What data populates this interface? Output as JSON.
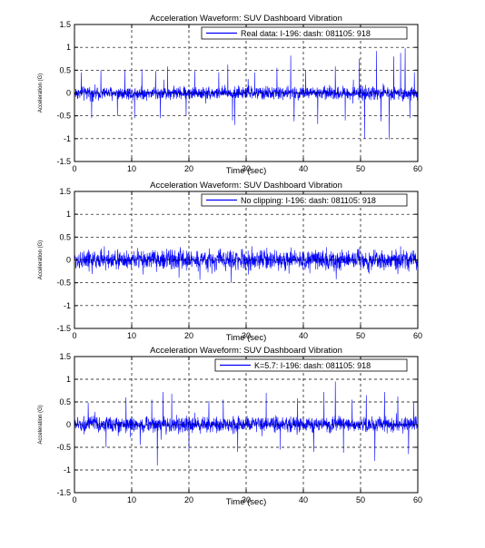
{
  "chart_data": [
    {
      "type": "line",
      "title": "Acceleration Waveform: SUV Dashboard Vibration",
      "xlabel": "Time (sec)",
      "ylabel": "Acceleration (G)",
      "xlim": [
        0,
        60
      ],
      "ylim": [
        -1.5,
        1.5
      ],
      "xticks": [
        0,
        10,
        20,
        30,
        40,
        50,
        60
      ],
      "yticks": [
        -1.5,
        -1,
        -0.5,
        0,
        0.5,
        1,
        1.5
      ],
      "grid": true,
      "legend_position": "top-right",
      "line_color": "#0000ff",
      "series": [
        {
          "name": "Real data: I-196: dash: 081105: 918",
          "base_amplitude": 0.1,
          "peaks": [
            {
              "t": 1.2,
              "v": 0.45
            },
            {
              "t": 3.0,
              "v": -0.55
            },
            {
              "t": 4.6,
              "v": 0.5
            },
            {
              "t": 7.5,
              "v": -0.5
            },
            {
              "t": 8.8,
              "v": 0.5
            },
            {
              "t": 10.5,
              "v": -0.55
            },
            {
              "t": 11.8,
              "v": 0.52
            },
            {
              "t": 14.2,
              "v": 0.48
            },
            {
              "t": 15.0,
              "v": -0.55
            },
            {
              "t": 16.3,
              "v": 0.58
            },
            {
              "t": 19.5,
              "v": -0.5
            },
            {
              "t": 21.0,
              "v": 0.48
            },
            {
              "t": 25.2,
              "v": 0.45
            },
            {
              "t": 26.8,
              "v": 0.62
            },
            {
              "t": 27.6,
              "v": -0.6
            },
            {
              "t": 28.0,
              "v": -0.7
            },
            {
              "t": 31.5,
              "v": 0.45
            },
            {
              "t": 35.4,
              "v": 0.55
            },
            {
              "t": 37.8,
              "v": 0.82
            },
            {
              "t": 38.4,
              "v": -0.62
            },
            {
              "t": 40.4,
              "v": 0.5
            },
            {
              "t": 42.5,
              "v": -0.68
            },
            {
              "t": 45.6,
              "v": 0.58
            },
            {
              "t": 47.3,
              "v": -0.6
            },
            {
              "t": 49.8,
              "v": 0.75
            },
            {
              "t": 50.7,
              "v": -1.0
            },
            {
              "t": 52.8,
              "v": 0.92
            },
            {
              "t": 53.6,
              "v": -0.62
            },
            {
              "t": 55.0,
              "v": -1.02
            },
            {
              "t": 55.8,
              "v": 0.8
            },
            {
              "t": 57.0,
              "v": 0.88
            },
            {
              "t": 57.8,
              "v": 0.98
            },
            {
              "t": 58.6,
              "v": -0.55
            },
            {
              "t": 59.4,
              "v": 0.45
            }
          ]
        }
      ]
    },
    {
      "type": "line",
      "title": "Acceleration Waveform: SUV Dashboard Vibration",
      "xlabel": "Time (sec)",
      "ylabel": "Acceleration (G)",
      "xlim": [
        0,
        60
      ],
      "ylim": [
        -1.5,
        1.5
      ],
      "xticks": [
        0,
        10,
        20,
        30,
        40,
        50,
        60
      ],
      "yticks": [
        -1.5,
        -1,
        -0.5,
        0,
        0.5,
        1,
        1.5
      ],
      "grid": true,
      "legend_position": "top-right",
      "line_color": "#0000ff",
      "series": [
        {
          "name": "No clipping: I-196: dash: 081105: 918",
          "base_amplitude": 0.15,
          "peaks": [
            {
              "t": 5.2,
              "v": 0.3
            },
            {
              "t": 12.0,
              "v": -0.32
            },
            {
              "t": 18.5,
              "v": 0.28
            },
            {
              "t": 24.0,
              "v": -0.3
            },
            {
              "t": 31.0,
              "v": 0.3
            },
            {
              "t": 37.5,
              "v": -0.3
            },
            {
              "t": 44.0,
              "v": 0.28
            },
            {
              "t": 51.5,
              "v": -0.3
            },
            {
              "t": 57.0,
              "v": 0.3
            }
          ]
        }
      ]
    },
    {
      "type": "line",
      "title": "Acceleration Waveform: SUV Dashboard Vibration",
      "xlabel": "Time (sec)",
      "ylabel": "Acceleration (G)",
      "xlim": [
        0,
        60
      ],
      "ylim": [
        -1.5,
        1.5
      ],
      "xticks": [
        0,
        10,
        20,
        30,
        40,
        50,
        60
      ],
      "yticks": [
        -1.5,
        -1,
        -0.5,
        0,
        0.5,
        1,
        1.5
      ],
      "grid": true,
      "legend_position": "top-right",
      "line_color": "#0000ff",
      "series": [
        {
          "name": "K=5.7: I-196: dash: 081105: 918",
          "base_amplitude": 0.12,
          "peaks": [
            {
              "t": 2.4,
              "v": 0.48
            },
            {
              "t": 5.5,
              "v": -0.5
            },
            {
              "t": 9.0,
              "v": 0.6
            },
            {
              "t": 11.5,
              "v": -0.45
            },
            {
              "t": 13.5,
              "v": 0.55
            },
            {
              "t": 14.5,
              "v": -0.9
            },
            {
              "t": 15.5,
              "v": 0.72
            },
            {
              "t": 17.0,
              "v": 0.68
            },
            {
              "t": 20.0,
              "v": -0.55
            },
            {
              "t": 23.5,
              "v": 0.52
            },
            {
              "t": 26.0,
              "v": 0.55
            },
            {
              "t": 28.5,
              "v": -0.6
            },
            {
              "t": 33.5,
              "v": 0.7
            },
            {
              "t": 36.0,
              "v": -0.55
            },
            {
              "t": 39.0,
              "v": 0.58
            },
            {
              "t": 41.8,
              "v": -0.6
            },
            {
              "t": 43.6,
              "v": 0.72
            },
            {
              "t": 45.6,
              "v": 0.95
            },
            {
              "t": 47.0,
              "v": -0.62
            },
            {
              "t": 48.5,
              "v": 0.55
            },
            {
              "t": 51.0,
              "v": 0.65
            },
            {
              "t": 52.5,
              "v": -0.8
            },
            {
              "t": 54.2,
              "v": 0.72
            },
            {
              "t": 56.5,
              "v": 0.62
            },
            {
              "t": 58.4,
              "v": -0.65
            },
            {
              "t": 59.3,
              "v": 0.5
            }
          ]
        }
      ]
    }
  ]
}
